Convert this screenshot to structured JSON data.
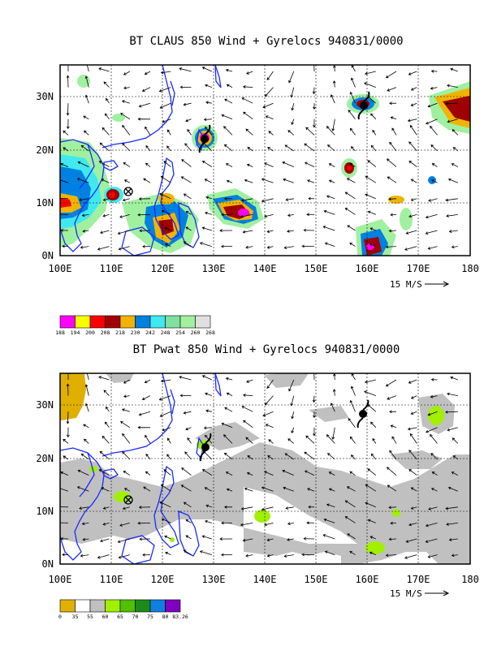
{
  "panels": [
    {
      "id": "claus",
      "title": "BT CLAUS 850 Wind + Gyrelocs 940831/0000",
      "colorbar": {
        "colors": [
          "#ff00ff",
          "#ffff00",
          "#ff0000",
          "#a00000",
          "#f0b400",
          "#0080e0",
          "#40e8f0",
          "#80e0a0",
          "#a0f0a0",
          "#e0e0e0"
        ],
        "labels": [
          "188",
          "194",
          "200",
          "208",
          "218",
          "230",
          "242",
          "248",
          "254",
          "260",
          "268"
        ]
      }
    },
    {
      "id": "pwat",
      "title": "BT Pwat 850 Wind + Gyrelocs 940831/0000",
      "colorbar": {
        "colors": [
          "#e0b000",
          "#ffffff",
          "#c0c0c0",
          "#a0f000",
          "#50c000",
          "#1a8c1a",
          "#1080e0",
          "#8000c0"
        ],
        "labels": [
          "0",
          "35",
          "55",
          "60",
          "65",
          "70",
          "75",
          "80",
          "83.26"
        ]
      }
    }
  ],
  "axes": {
    "x_ticks": [
      "100E",
      "110E",
      "120E",
      "130E",
      "140E",
      "150E",
      "160E",
      "170E",
      "180"
    ],
    "y_ticks": [
      "0N",
      "10N",
      "20N",
      "30N"
    ],
    "lon_range": [
      100,
      180
    ],
    "lat_range": [
      0,
      36
    ]
  },
  "wind_scale": {
    "label": "15 M/S"
  },
  "gyre_symbols": [
    {
      "type": "typhoon",
      "lon": 127.5,
      "lat": 22.2
    },
    {
      "type": "typhoon",
      "lon": 159.5,
      "lat": 28.5
    },
    {
      "type": "circle-x",
      "lon": 113.3,
      "lat": 12.0
    }
  ],
  "colors": {
    "coastline": "#1a2bff",
    "grid": "#000000"
  }
}
